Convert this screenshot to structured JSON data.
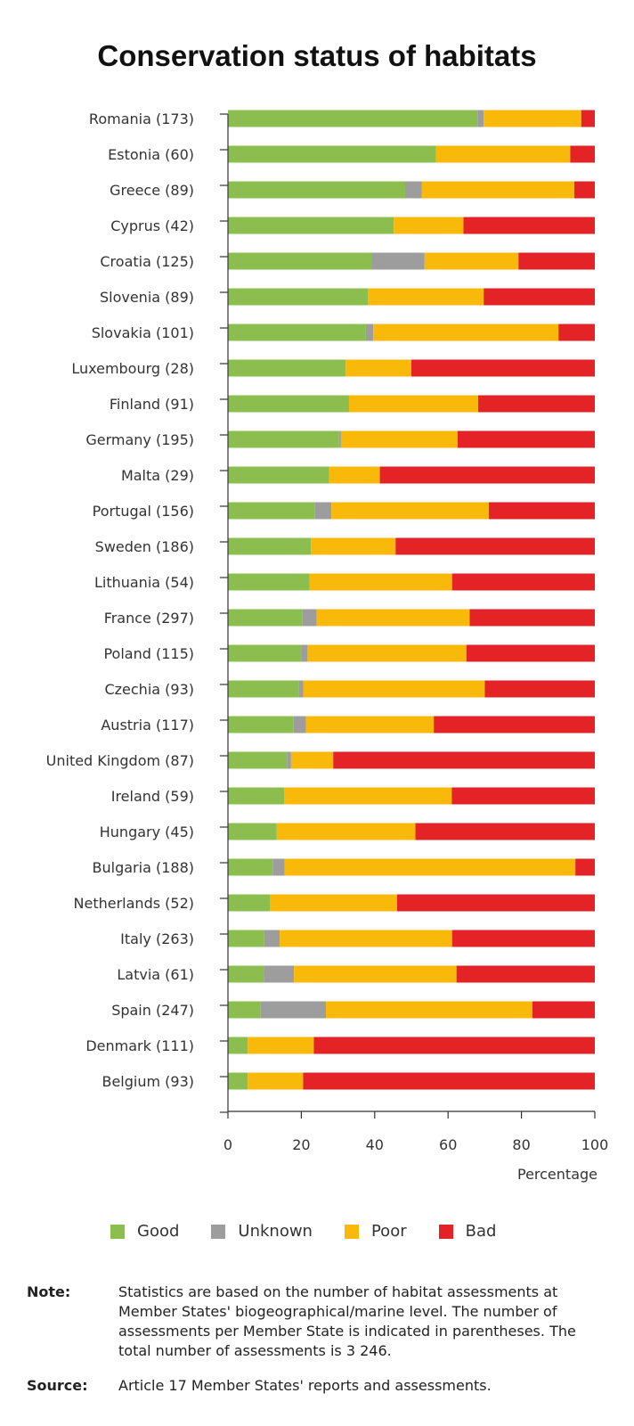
{
  "page": {
    "title": "Conservation status of habitats"
  },
  "chart_data": {
    "type": "bar",
    "orientation": "horizontal",
    "stacked": true,
    "title": "Conservation status of habitats",
    "xlabel": "Percentage",
    "ylabel": "",
    "xlim": [
      0,
      100
    ],
    "xticks": [
      0,
      20,
      40,
      60,
      80,
      100
    ],
    "grid": false,
    "legend_position": "bottom",
    "categories": [
      "Romania (173)",
      "Estonia (60)",
      "Greece (89)",
      "Cyprus (42)",
      "Croatia (125)",
      "Slovenia (89)",
      "Slovakia (101)",
      "Luxembourg (28)",
      "Finland (91)",
      "Germany (195)",
      "Malta (29)",
      "Portugal (156)",
      "Sweden (186)",
      "Lithuania (54)",
      "France (297)",
      "Poland  (115)",
      "Czechia (93)",
      "Austria (117)",
      "United Kingdom (87)",
      "Ireland (59)",
      "Hungary (45)",
      "Bulgaria (188)",
      "Netherlands (52)",
      "Italy (263)",
      "Latvia (61)",
      "Spain (247)",
      "Denmark (111)",
      "Belgium (93)"
    ],
    "series": [
      {
        "name": "Good",
        "color": "#8cbe4f",
        "values": [
          68,
          56.7,
          48.3,
          45.2,
          39.2,
          38.2,
          37.6,
          32.1,
          33,
          30.3,
          27.6,
          23.7,
          22.6,
          22.2,
          20.2,
          20,
          19.4,
          17.9,
          16.1,
          15.3,
          13.3,
          12.2,
          11.5,
          9.9,
          9.8,
          8.9,
          5.4,
          5.4
        ]
      },
      {
        "name": "Unknown",
        "color": "#9d9d9d",
        "values": [
          1.7,
          0,
          4.5,
          0,
          14.4,
          0,
          2,
          0,
          0,
          0.5,
          0,
          4.5,
          0,
          0,
          4,
          1.7,
          1.1,
          3.4,
          1.1,
          0,
          0,
          3.2,
          0,
          4.2,
          8.2,
          17.8,
          0,
          0
        ]
      },
      {
        "name": "Poor",
        "color": "#f9b90b",
        "values": [
          26.6,
          36.6,
          41.6,
          19,
          25.6,
          31.5,
          50.5,
          17.9,
          35.2,
          31.8,
          13.8,
          42.9,
          23.1,
          38.9,
          41.7,
          43.3,
          49.5,
          34.8,
          11.5,
          45.7,
          37.8,
          79.3,
          34.6,
          47,
          44.3,
          56.3,
          18,
          15.1
        ]
      },
      {
        "name": "Bad",
        "color": "#e42327",
        "values": [
          3.7,
          6.7,
          5.6,
          35.8,
          20.8,
          30.3,
          9.9,
          50,
          31.8,
          37.4,
          58.6,
          28.9,
          54.3,
          38.9,
          34.1,
          35,
          30,
          43.9,
          71.3,
          39,
          48.9,
          5.3,
          53.9,
          38.9,
          37.7,
          17,
          76.6,
          79.5
        ]
      }
    ]
  },
  "note": {
    "label": "Note:",
    "text": "Statistics are based on the number of habitat assessments at Member States' biogeographical/marine level. The number of assessments per Member State is indicated in parentheses. The total number of assessments is 3 246."
  },
  "source": {
    "label": "Source:",
    "text": "Article 17 Member States' reports and assessments."
  }
}
